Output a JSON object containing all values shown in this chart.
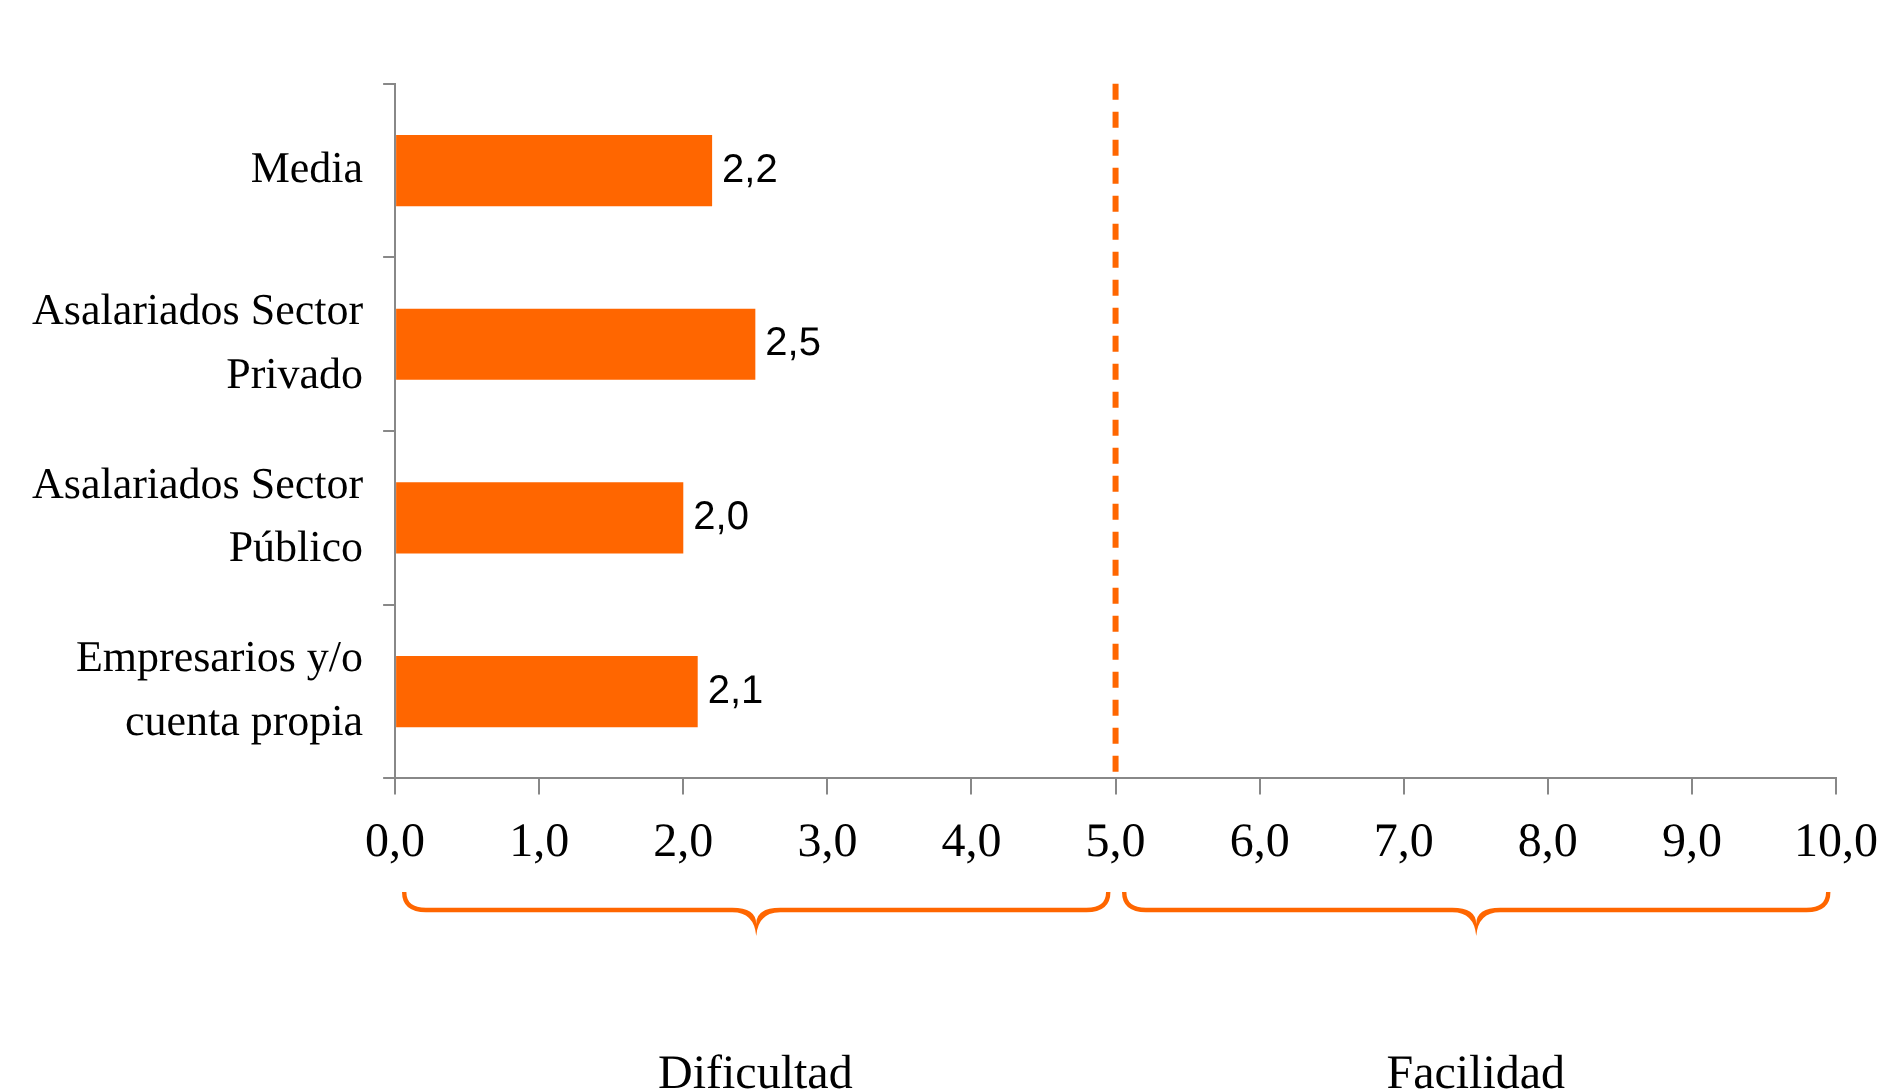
{
  "chart_data": {
    "type": "bar",
    "orientation": "horizontal",
    "categories": [
      "Media",
      "Asalariados Sector Privado",
      "Asalariados Sector Público",
      "Empresarios y/o cuenta propia"
    ],
    "values": [
      2.2,
      2.5,
      2.0,
      2.1
    ],
    "value_labels": [
      "2,2",
      "2,5",
      "2,0",
      "2,1"
    ],
    "color": "#ff6600",
    "xlim": [
      0,
      10
    ],
    "xticks": [
      {
        "value": 0,
        "label": "0,0"
      },
      {
        "value": 1,
        "label": "1,0"
      },
      {
        "value": 2,
        "label": "2,0"
      },
      {
        "value": 3,
        "label": "3,0"
      },
      {
        "value": 4,
        "label": "4,0"
      },
      {
        "value": 5,
        "label": "5,0"
      },
      {
        "value": 6,
        "label": "6,0"
      },
      {
        "value": 7,
        "label": "7,0"
      },
      {
        "value": 8,
        "label": "8,0"
      },
      {
        "value": 9,
        "label": "9,0"
      },
      {
        "value": 10,
        "label": "10,0"
      }
    ],
    "ref_lines": [
      {
        "axis": "x",
        "value": 5,
        "color": "#ff6600",
        "line_style": "dashed"
      }
    ],
    "annotations": [
      "Dificultad",
      "Facilidad"
    ],
    "grid": false,
    "legend": false
  }
}
